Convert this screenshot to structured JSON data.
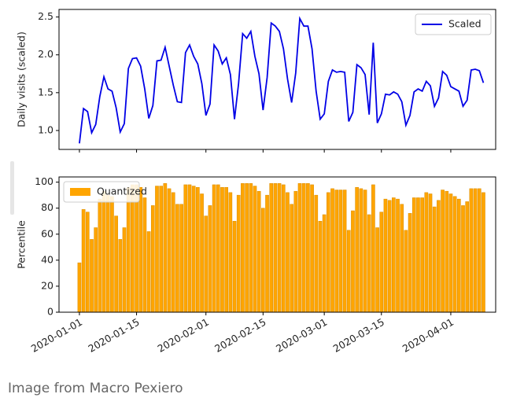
{
  "chart_data": [
    {
      "type": "line",
      "ylabel": "Daily visits (scaled)",
      "legend": "upper right",
      "grid": false,
      "x": [
        "2020-01-01",
        "2020-01-02",
        "2020-01-03",
        "2020-01-04",
        "2020-01-05",
        "2020-01-06",
        "2020-01-07",
        "2020-01-08",
        "2020-01-09",
        "2020-01-10",
        "2020-01-11",
        "2020-01-12",
        "2020-01-13",
        "2020-01-14",
        "2020-01-15",
        "2020-01-16",
        "2020-01-17",
        "2020-01-18",
        "2020-01-19",
        "2020-01-20",
        "2020-01-21",
        "2020-01-22",
        "2020-01-23",
        "2020-01-24",
        "2020-01-25",
        "2020-01-26",
        "2020-01-27",
        "2020-01-28",
        "2020-01-29",
        "2020-01-30",
        "2020-01-31",
        "2020-02-01",
        "2020-02-02",
        "2020-02-03",
        "2020-02-04",
        "2020-02-05",
        "2020-02-06",
        "2020-02-07",
        "2020-02-08",
        "2020-02-09",
        "2020-02-10",
        "2020-02-11",
        "2020-02-12",
        "2020-02-13",
        "2020-02-14",
        "2020-02-15",
        "2020-02-16",
        "2020-02-17",
        "2020-02-18",
        "2020-02-19",
        "2020-02-20",
        "2020-02-21",
        "2020-02-22",
        "2020-02-23",
        "2020-02-24",
        "2020-02-25",
        "2020-02-26",
        "2020-02-27",
        "2020-02-28",
        "2020-02-29",
        "2020-03-01",
        "2020-03-02",
        "2020-03-03",
        "2020-03-04",
        "2020-03-05",
        "2020-03-06",
        "2020-03-07",
        "2020-03-08",
        "2020-03-09",
        "2020-03-10",
        "2020-03-11",
        "2020-03-12",
        "2020-03-13",
        "2020-03-14",
        "2020-03-15",
        "2020-03-16",
        "2020-03-17",
        "2020-03-18",
        "2020-03-19",
        "2020-03-20",
        "2020-03-21",
        "2020-03-22",
        "2020-03-23",
        "2020-03-24",
        "2020-03-25",
        "2020-03-26",
        "2020-03-27",
        "2020-03-28",
        "2020-03-29",
        "2020-03-30",
        "2020-03-31",
        "2020-04-01",
        "2020-04-02",
        "2020-04-03",
        "2020-04-04",
        "2020-04-05",
        "2020-04-06",
        "2020-04-07",
        "2020-04-08",
        "2020-04-09"
      ],
      "series": [
        {
          "name": "Scaled",
          "color": "#0000e6",
          "values": [
            0.83,
            1.29,
            1.25,
            0.97,
            1.08,
            1.45,
            1.71,
            1.55,
            1.52,
            1.3,
            0.98,
            1.09,
            1.82,
            1.95,
            1.96,
            1.85,
            1.55,
            1.16,
            1.33,
            1.92,
            1.93,
            2.1,
            1.85,
            1.6,
            1.38,
            1.37,
            2.03,
            2.13,
            1.98,
            1.88,
            1.62,
            1.2,
            1.35,
            2.13,
            2.05,
            1.88,
            1.96,
            1.74,
            1.15,
            1.62,
            2.28,
            2.22,
            2.31,
            1.98,
            1.75,
            1.27,
            1.7,
            2.42,
            2.38,
            2.31,
            2.08,
            1.68,
            1.37,
            1.76,
            2.48,
            2.38,
            2.38,
            2.08,
            1.52,
            1.15,
            1.22,
            1.65,
            1.8,
            1.77,
            1.78,
            1.77,
            1.12,
            1.24,
            1.87,
            1.83,
            1.74,
            1.21,
            2.16,
            1.1,
            1.22,
            1.48,
            1.47,
            1.51,
            1.48,
            1.38,
            1.07,
            1.2,
            1.51,
            1.55,
            1.52,
            1.65,
            1.59,
            1.32,
            1.43,
            1.78,
            1.73,
            1.58,
            1.55,
            1.52,
            1.32,
            1.4,
            1.8,
            1.81,
            1.79,
            1.63
          ]
        }
      ],
      "xlim": [
        "2019-12-27",
        "2020-04-12"
      ],
      "ylim": [
        0.75,
        2.6
      ],
      "yticks": [
        {
          "value": 1,
          "label": "1.0"
        },
        1.5,
        {
          "value": 2,
          "label": "2.0"
        },
        2.5
      ]
    },
    {
      "type": "bar",
      "ylabel": "Percentile",
      "legend": "upper left",
      "grid": false,
      "x": [
        "2020-01-01",
        "2020-01-02",
        "2020-01-03",
        "2020-01-04",
        "2020-01-05",
        "2020-01-06",
        "2020-01-07",
        "2020-01-08",
        "2020-01-09",
        "2020-01-10",
        "2020-01-11",
        "2020-01-12",
        "2020-01-13",
        "2020-01-14",
        "2020-01-15",
        "2020-01-16",
        "2020-01-17",
        "2020-01-18",
        "2020-01-19",
        "2020-01-20",
        "2020-01-21",
        "2020-01-22",
        "2020-01-23",
        "2020-01-24",
        "2020-01-25",
        "2020-01-26",
        "2020-01-27",
        "2020-01-28",
        "2020-01-29",
        "2020-01-30",
        "2020-01-31",
        "2020-02-01",
        "2020-02-02",
        "2020-02-03",
        "2020-02-04",
        "2020-02-05",
        "2020-02-06",
        "2020-02-07",
        "2020-02-08",
        "2020-02-09",
        "2020-02-10",
        "2020-02-11",
        "2020-02-12",
        "2020-02-13",
        "2020-02-14",
        "2020-02-15",
        "2020-02-16",
        "2020-02-17",
        "2020-02-18",
        "2020-02-19",
        "2020-02-20",
        "2020-02-21",
        "2020-02-22",
        "2020-02-23",
        "2020-02-24",
        "2020-02-25",
        "2020-02-26",
        "2020-02-27",
        "2020-02-28",
        "2020-02-29",
        "2020-03-01",
        "2020-03-02",
        "2020-03-03",
        "2020-03-04",
        "2020-03-05",
        "2020-03-06",
        "2020-03-07",
        "2020-03-08",
        "2020-03-09",
        "2020-03-10",
        "2020-03-11",
        "2020-03-12",
        "2020-03-13",
        "2020-03-14",
        "2020-03-15",
        "2020-03-16",
        "2020-03-17",
        "2020-03-18",
        "2020-03-19",
        "2020-03-20",
        "2020-03-21",
        "2020-03-22",
        "2020-03-23",
        "2020-03-24",
        "2020-03-25",
        "2020-03-26",
        "2020-03-27",
        "2020-03-28",
        "2020-03-29",
        "2020-03-30",
        "2020-03-31",
        "2020-04-01",
        "2020-04-02",
        "2020-04-03",
        "2020-04-04",
        "2020-04-05",
        "2020-04-06",
        "2020-04-07",
        "2020-04-08",
        "2020-04-09"
      ],
      "series": [
        {
          "name": "Quantized",
          "color": "#ffa500",
          "values": [
            38,
            79,
            77,
            56,
            65,
            87,
            93,
            90,
            89,
            74,
            56,
            65,
            96,
            98,
            98,
            96,
            88,
            62,
            82,
            97,
            97,
            99,
            95,
            92,
            83,
            83,
            98,
            98,
            97,
            96,
            91,
            74,
            82,
            98,
            98,
            96,
            96,
            92,
            70,
            90,
            99,
            99,
            99,
            97,
            93,
            80,
            90,
            99,
            99,
            99,
            98,
            92,
            83,
            93,
            99,
            99,
            99,
            98,
            90,
            70,
            75,
            92,
            95,
            94,
            94,
            94,
            63,
            78,
            96,
            95,
            94,
            75,
            98,
            65,
            77,
            87,
            86,
            88,
            87,
            83,
            63,
            76,
            88,
            88,
            88,
            92,
            91,
            81,
            86,
            94,
            93,
            91,
            89,
            87,
            82,
            85,
            95,
            95,
            95,
            92
          ]
        }
      ],
      "xlim": [
        "2019-12-27",
        "2020-04-12"
      ],
      "xticks": [
        "2020-01-01",
        "2020-01-15",
        "2020-02-01",
        "2020-02-15",
        "2020-03-01",
        "2020-03-15",
        "2020-04-01"
      ],
      "ylim": [
        0,
        104
      ],
      "yticks": [
        0,
        20,
        40,
        60,
        80,
        100
      ]
    }
  ],
  "caption": "Image from Macro Pexiero"
}
